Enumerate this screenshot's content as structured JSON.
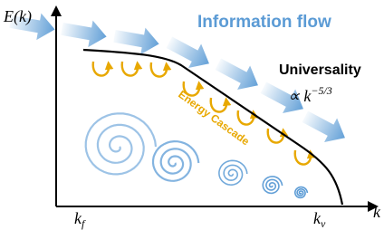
{
  "labels": {
    "y_axis": "E(k)",
    "x_axis": "k",
    "k_f": {
      "base": "k",
      "sub": "f"
    },
    "k_nu": {
      "base": "k",
      "sub": "ν"
    },
    "info_flow": "Information flow",
    "universality": "Universality",
    "scaling": {
      "prefix": "∝ k",
      "sup": "−5/3"
    },
    "cascade": "Energy Cascade"
  }
}
